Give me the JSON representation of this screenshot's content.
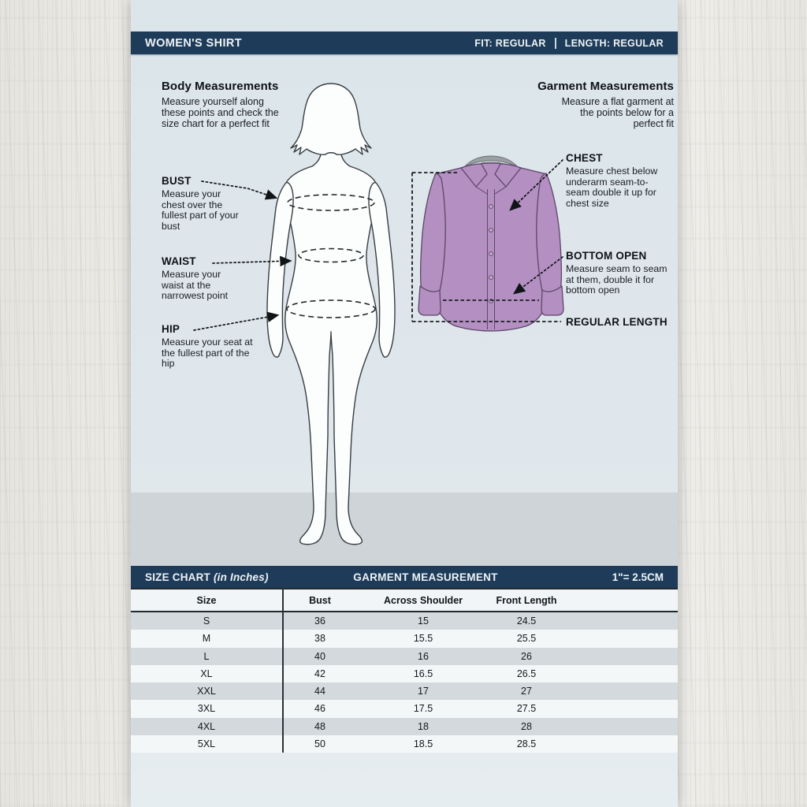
{
  "header": {
    "title": "WOMEN'S SHIRT",
    "fit_label": "FIT: REGULAR",
    "length_label": "LENGTH: REGULAR"
  },
  "body_measurements": {
    "title": "Body Measurements",
    "subtitle": "Measure yourself along these points and check the size chart for a perfect fit",
    "points": [
      {
        "label": "BUST",
        "desc": "Measure your chest over the fullest part of your bust"
      },
      {
        "label": "WAIST",
        "desc": "Measure your waist at the narrowest point"
      },
      {
        "label": "HIP",
        "desc": "Measure your seat at the fullest part of the hip"
      }
    ]
  },
  "garment_measurements": {
    "title": "Garment Measurements",
    "subtitle": "Measure a flat garment at the points below for a perfect fit",
    "points": [
      {
        "label": "CHEST",
        "desc": "Measure chest below underarm seam-to-seam double it up for chest size"
      },
      {
        "label": "BOTTOM OPEN",
        "desc": "Measure seam to seam at them, double it for bottom open"
      },
      {
        "label": "REGULAR LENGTH",
        "desc": ""
      }
    ]
  },
  "size_chart": {
    "bar_title": "SIZE CHART",
    "bar_title_note": "(in Inches)",
    "bar_center": "GARMENT MEASUREMENT",
    "bar_right": "1\"= 2.5CM",
    "columns": [
      "Size",
      "Bust",
      "Across Shoulder",
      "Front Length"
    ],
    "rows": [
      [
        "S",
        "36",
        "15",
        "24.5"
      ],
      [
        "M",
        "38",
        "15.5",
        "25.5"
      ],
      [
        "L",
        "40",
        "16",
        "26"
      ],
      [
        "XL",
        "42",
        "16.5",
        "26.5"
      ],
      [
        "XXL",
        "44",
        "17",
        "27"
      ],
      [
        "3XL",
        "46",
        "17.5",
        "27.5"
      ],
      [
        "4XL",
        "48",
        "18",
        "28"
      ],
      [
        "5XL",
        "50",
        "18.5",
        "28.5"
      ]
    ]
  },
  "colors": {
    "navy": "#1e3c59",
    "panel": "#dfe7ec",
    "floor": "#ced4d8",
    "row_alt": "#d3d9dc",
    "row_light": "#f4f7f8",
    "shirt": "#b48fc2",
    "ink": "#14181c"
  }
}
